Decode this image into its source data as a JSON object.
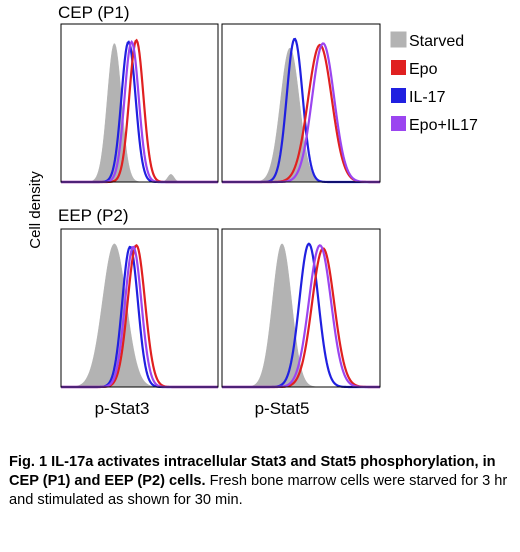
{
  "figure": {
    "ylabel": "Cell density",
    "group_labels": [
      "CEP (P1)",
      "EEP (P2)"
    ],
    "column_labels": [
      "p-Stat3",
      "p-Stat5"
    ],
    "legend_position": "right",
    "legend": [
      {
        "label": "Starved",
        "color": "#b3b3b3",
        "filled": true
      },
      {
        "label": "Epo",
        "color": "#e02020",
        "filled": false
      },
      {
        "label": "IL-17",
        "color": "#2020e0",
        "filled": false
      },
      {
        "label": "Epo+IL17",
        "color": "#9b45f0",
        "filled": false
      }
    ]
  },
  "chart_data": [
    {
      "type": "area",
      "group": "CEP (P1)",
      "column": "p-Stat3",
      "xlabel": "",
      "ylabel": "Cell density",
      "xlim": [
        0,
        1
      ],
      "ylim": [
        0,
        1
      ],
      "grid": false,
      "series": [
        {
          "name": "Starved",
          "peaks": [
            {
              "center": 0.34,
              "sigma": 0.045,
              "height": 0.9
            },
            {
              "center": 0.7,
              "sigma": 0.02,
              "height": 0.05
            }
          ]
        },
        {
          "name": "Epo",
          "peaks": [
            {
              "center": 0.48,
              "sigma": 0.045,
              "height": 0.92
            }
          ]
        },
        {
          "name": "IL-17",
          "peaks": [
            {
              "center": 0.43,
              "sigma": 0.045,
              "height": 0.91
            }
          ]
        },
        {
          "name": "Epo+IL17",
          "peaks": [
            {
              "center": 0.45,
              "sigma": 0.045,
              "height": 0.91
            }
          ]
        }
      ]
    },
    {
      "type": "area",
      "group": "CEP (P1)",
      "column": "p-Stat5",
      "xlabel": "",
      "ylabel": "Cell density",
      "xlim": [
        0,
        1
      ],
      "ylim": [
        0,
        1
      ],
      "grid": false,
      "series": [
        {
          "name": "Starved",
          "peaks": [
            {
              "center": 0.43,
              "sigma": 0.06,
              "height": 0.87
            }
          ]
        },
        {
          "name": "Epo",
          "peaks": [
            {
              "center": 0.62,
              "sigma": 0.075,
              "height": 0.89
            }
          ]
        },
        {
          "name": "IL-17",
          "peaks": [
            {
              "center": 0.46,
              "sigma": 0.05,
              "height": 0.93
            }
          ]
        },
        {
          "name": "Epo+IL17",
          "peaks": [
            {
              "center": 0.64,
              "sigma": 0.07,
              "height": 0.9
            }
          ]
        }
      ]
    },
    {
      "type": "area",
      "group": "EEP (P2)",
      "column": "p-Stat3",
      "xlabel": "p-Stat3",
      "ylabel": "Cell density",
      "xlim": [
        0,
        1
      ],
      "ylim": [
        0,
        1
      ],
      "grid": false,
      "series": [
        {
          "name": "Starved",
          "peaks": [
            {
              "center": 0.34,
              "sigma": 0.075,
              "height": 0.93
            }
          ]
        },
        {
          "name": "Epo",
          "peaks": [
            {
              "center": 0.48,
              "sigma": 0.055,
              "height": 0.92
            }
          ]
        },
        {
          "name": "IL-17",
          "peaks": [
            {
              "center": 0.44,
              "sigma": 0.05,
              "height": 0.91
            }
          ]
        },
        {
          "name": "Epo+IL17",
          "peaks": [
            {
              "center": 0.46,
              "sigma": 0.052,
              "height": 0.91
            }
          ]
        }
      ]
    },
    {
      "type": "area",
      "group": "EEP (P2)",
      "column": "p-Stat5",
      "xlabel": "p-Stat5",
      "ylabel": "Cell density",
      "xlim": [
        0,
        1
      ],
      "ylim": [
        0,
        1
      ],
      "grid": false,
      "series": [
        {
          "name": "Starved",
          "peaks": [
            {
              "center": 0.38,
              "sigma": 0.06,
              "height": 0.93
            }
          ]
        },
        {
          "name": "Epo",
          "peaks": [
            {
              "center": 0.64,
              "sigma": 0.07,
              "height": 0.9
            }
          ]
        },
        {
          "name": "IL-17",
          "peaks": [
            {
              "center": 0.55,
              "sigma": 0.06,
              "height": 0.93
            }
          ]
        },
        {
          "name": "Epo+IL17",
          "peaks": [
            {
              "center": 0.62,
              "sigma": 0.07,
              "height": 0.92
            }
          ]
        }
      ]
    }
  ],
  "caption": {
    "title": "Fig. 1 IL-17a activates intracellular Stat3 and Stat5 phosphorylation, in CEP (P1) and EEP (P2) cells.",
    "body": "Fresh bone marrow cells were starved for 3 hr and stimulated as shown for 30 min."
  }
}
